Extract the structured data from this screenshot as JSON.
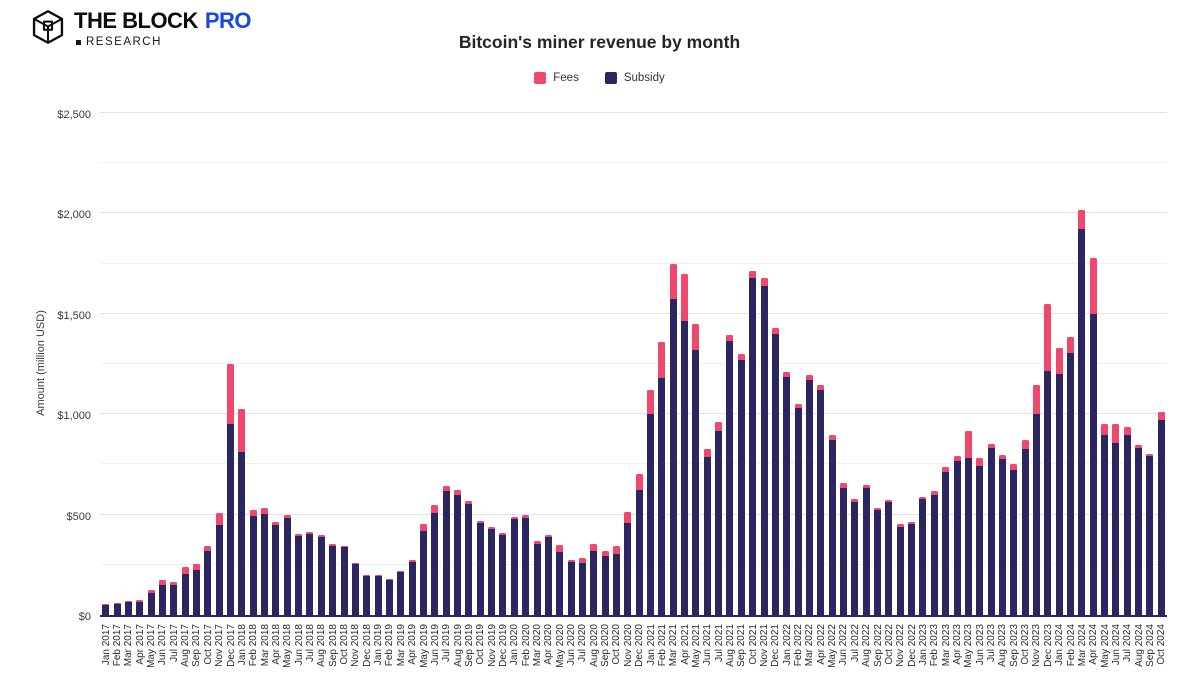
{
  "header": {
    "logo_main": "THE BLOCK",
    "logo_pro": "PRO",
    "logo_research": "RESEARCH",
    "logo_blue": "#1748e2"
  },
  "chart": {
    "title": "Bitcoin's miner revenue by month",
    "legend": [
      {
        "label": "Fees",
        "color": "#f0486c"
      },
      {
        "label": "Subsidy",
        "color": "#2b265f"
      }
    ]
  },
  "chart_data": {
    "type": "bar",
    "stacked": true,
    "title": "Bitcoin's miner revenue by month",
    "xlabel": "",
    "ylabel": "Amount (million USD)",
    "ylim": [
      0,
      2500
    ],
    "ytick_major": 500,
    "ytick_minor": 250,
    "y_tick_labels": [
      "$0",
      "$500",
      "$1,000",
      "$1,500",
      "$2,000",
      "$2,500"
    ],
    "grid": "horizontal",
    "legend_position": "top",
    "categories": [
      "Jan 2017",
      "Feb 2017",
      "Mar 2017",
      "Apr 2017",
      "May 2017",
      "Jun 2017",
      "Jul 2017",
      "Aug 2017",
      "Sep 2017",
      "Oct 2017",
      "Nov 2017",
      "Dec 2017",
      "Jan 2018",
      "Feb 2018",
      "Mar 2018",
      "Apr 2018",
      "May 2018",
      "Jun 2018",
      "Jul 2018",
      "Aug 2018",
      "Sep 2018",
      "Oct 2018",
      "Nov 2018",
      "Dec 2018",
      "Jan 2019",
      "Feb 2019",
      "Mar 2019",
      "Apr 2019",
      "May 2019",
      "Jun 2019",
      "Jul 2019",
      "Aug 2019",
      "Sep 2019",
      "Oct 2019",
      "Nov 2019",
      "Dec 2019",
      "Jan 2020",
      "Feb 2020",
      "Mar 2020",
      "Apr 2020",
      "May 2020",
      "Jun 2020",
      "Jul 2020",
      "Aug 2020",
      "Sep 2020",
      "Oct 2020",
      "Nov 2020",
      "Dec 2020",
      "Jan 2021",
      "Feb 2021",
      "Mar 2021",
      "Apr 2021",
      "May 2021",
      "Jun 2021",
      "Jul 2021",
      "Aug 2021",
      "Sep 2021",
      "Oct 2021",
      "Nov 2021",
      "Dec 2021",
      "Jan 2022",
      "Feb 2022",
      "Mar 2022",
      "Apr 2022",
      "May 2022",
      "Jun 2022",
      "Jul 2022",
      "Aug 2022",
      "Sep 2022",
      "Oct 2022",
      "Nov 2022",
      "Dec 2022",
      "Jan 2023",
      "Feb 2023",
      "Mar 2023",
      "Apr 2023",
      "May 2023",
      "Jun 2023",
      "Jul 2023",
      "Aug 2023",
      "Sep 2023",
      "Oct 2023",
      "Nov 2023",
      "Dec 2023",
      "Jan 2024",
      "Feb 2024",
      "Mar 2024",
      "Apr 2024",
      "May 2024",
      "Jun 2024",
      "Jul 2024",
      "Aug 2024",
      "Sep 2024",
      "Oct 2024"
    ],
    "series": [
      {
        "name": "Subsidy",
        "color": "#2b265f",
        "values": [
          50,
          55,
          64,
          67,
          110,
          150,
          150,
          205,
          222,
          320,
          450,
          950,
          810,
          495,
          505,
          450,
          485,
          395,
          405,
          390,
          345,
          338,
          253,
          192,
          196,
          176,
          214,
          262,
          420,
          510,
          620,
          600,
          555,
          460,
          430,
          400,
          478,
          485,
          355,
          388,
          315,
          262,
          260,
          320,
          295,
          305,
          460,
          625,
          1000,
          1180,
          1575,
          1465,
          1320,
          785,
          915,
          1365,
          1270,
          1680,
          1640,
          1400,
          1185,
          1030,
          1170,
          1120,
          870,
          635,
          565,
          635,
          523,
          562,
          440,
          455,
          578,
          600,
          710,
          765,
          780,
          740,
          830,
          775,
          720,
          825,
          1000,
          1215,
          1200,
          1305,
          1920,
          1500,
          895,
          855,
          895,
          830,
          790,
          970
        ]
      },
      {
        "name": "Fees",
        "color": "#f0486c",
        "values": [
          5,
          5,
          8,
          8,
          15,
          25,
          15,
          35,
          33,
          25,
          60,
          300,
          215,
          30,
          30,
          15,
          15,
          10,
          10,
          10,
          10,
          7,
          7,
          8,
          4,
          4,
          6,
          13,
          35,
          40,
          25,
          25,
          15,
          10,
          10,
          10,
          12,
          15,
          15,
          12,
          35,
          13,
          25,
          35,
          25,
          40,
          55,
          75,
          120,
          180,
          175,
          235,
          130,
          40,
          45,
          30,
          30,
          35,
          40,
          30,
          25,
          20,
          25,
          25,
          25,
          20,
          15,
          12,
          12,
          13,
          15,
          10,
          12,
          20,
          25,
          25,
          135,
          40,
          20,
          20,
          30,
          45,
          145,
          335,
          130,
          80,
          95,
          280,
          55,
          95,
          40,
          15,
          12,
          40
        ]
      }
    ]
  }
}
